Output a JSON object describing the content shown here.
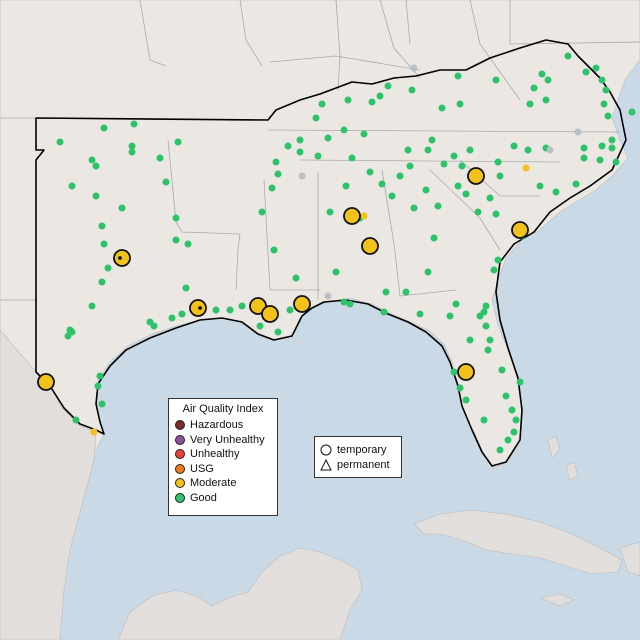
{
  "map": {
    "colors": {
      "water": "#c9dae6",
      "land": "#ebe7e3",
      "foreign_land": "#e2dedb",
      "state_line": "#aaaaaa",
      "region_outline": "#000000"
    },
    "aqi_colors": {
      "Hazardous": "#7e2a2a",
      "Very Unhealthy": "#8f4fa3",
      "Unhealthy": "#e8443a",
      "USG": "#ee7b1a",
      "Moderate": "#f2c21a",
      "Good": "#2ec36b",
      "No data": "#b9bfc6"
    },
    "temporary_moderate_sites_count": 13
  },
  "legend": {
    "title": "Air Quality Index",
    "items": [
      {
        "label": "Hazardous",
        "color": "#7e2a2a"
      },
      {
        "label": "Very Unhealthy",
        "color": "#8f4fa3"
      },
      {
        "label": "Unhealthy",
        "color": "#e8443a"
      },
      {
        "label": "USG",
        "color": "#ee7b1a"
      },
      {
        "label": "Moderate",
        "color": "#f2c21a"
      },
      {
        "label": "Good",
        "color": "#2ec36b"
      }
    ]
  },
  "site_legend": {
    "temporary": "temporary",
    "permanent": "permanent"
  }
}
